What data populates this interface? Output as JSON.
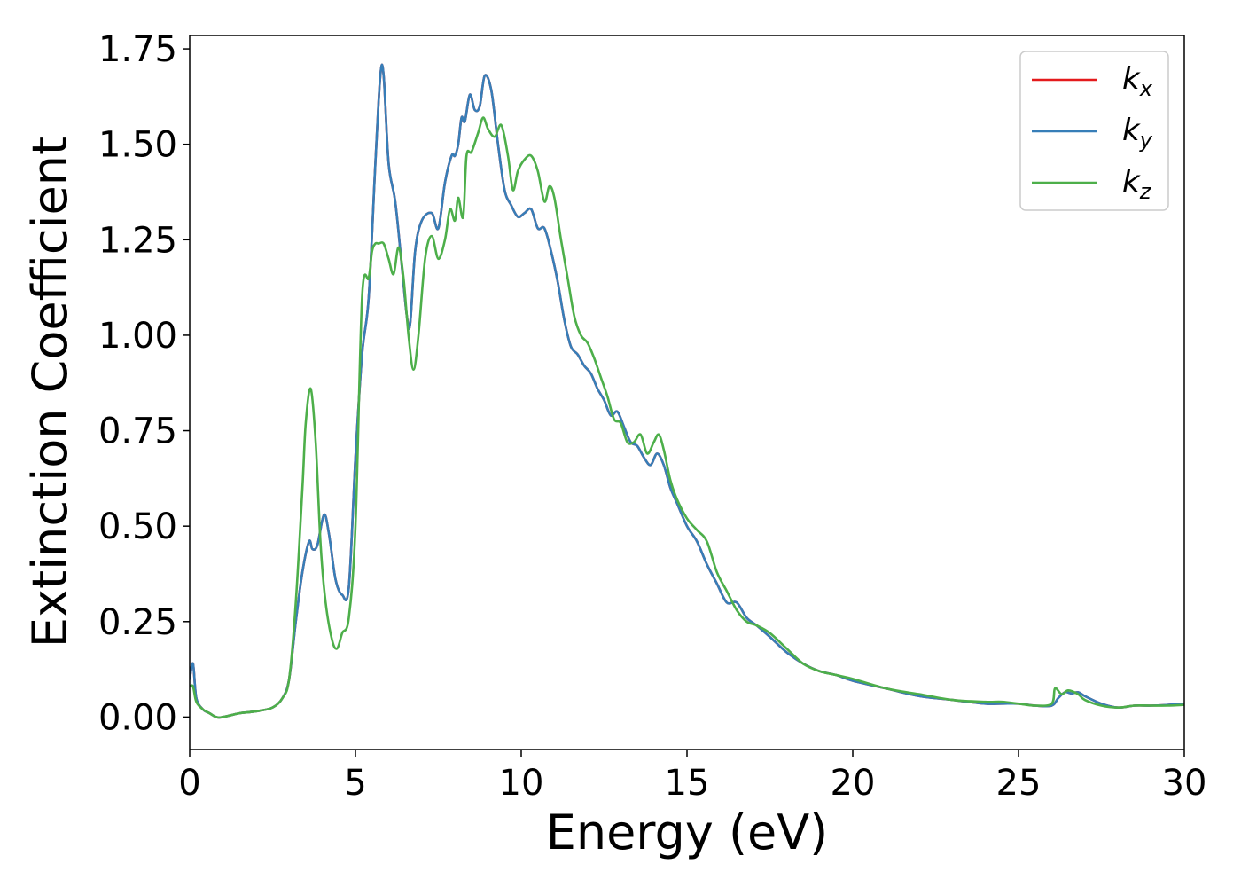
{
  "chart_data": {
    "type": "line",
    "xlabel": "Energy (eV)",
    "ylabel": "Extinction Coefficient",
    "xlim": [
      0,
      30
    ],
    "ylim": [
      -0.085,
      1.785
    ],
    "xticks": [
      0,
      5,
      10,
      15,
      20,
      25,
      30
    ],
    "xtick_labels": [
      "0",
      "5",
      "10",
      "15",
      "20",
      "25",
      "30"
    ],
    "yticks": [
      0.0,
      0.25,
      0.5,
      0.75,
      1.0,
      1.25,
      1.5,
      1.75
    ],
    "ytick_labels": [
      "0.00",
      "0.25",
      "0.50",
      "0.75",
      "1.00",
      "1.25",
      "1.50",
      "1.75"
    ],
    "grid": false,
    "legend_position": "top-right",
    "series": [
      {
        "name": "k_x",
        "label_main": "k",
        "label_sub": "x",
        "color": "#e41a1c",
        "x": [
          0,
          0.1,
          0.2,
          0.4,
          0.6,
          0.8,
          1.0,
          1.5,
          2.0,
          2.5,
          2.8,
          3.0,
          3.2,
          3.4,
          3.6,
          3.7,
          3.85,
          4.05,
          4.2,
          4.4,
          4.6,
          4.8,
          5.0,
          5.2,
          5.4,
          5.6,
          5.75,
          5.85,
          6.0,
          6.2,
          6.4,
          6.55,
          6.65,
          6.8,
          7.0,
          7.3,
          7.5,
          7.7,
          7.9,
          8.0,
          8.1,
          8.2,
          8.3,
          8.45,
          8.6,
          8.75,
          8.9,
          9.1,
          9.3,
          9.5,
          9.7,
          9.9,
          10.1,
          10.3,
          10.5,
          10.7,
          10.9,
          11.1,
          11.3,
          11.5,
          11.7,
          11.9,
          12.1,
          12.3,
          12.5,
          12.7,
          12.9,
          13.1,
          13.3,
          13.5,
          13.7,
          13.9,
          14.1,
          14.3,
          14.5,
          14.7,
          15.0,
          15.3,
          15.6,
          15.9,
          16.2,
          16.5,
          16.8,
          17.1,
          17.5,
          18.0,
          18.5,
          19.0,
          19.5,
          20.0,
          21.0,
          22.0,
          23.0,
          24.0,
          24.5,
          25.0,
          25.5,
          26.0,
          26.2,
          26.4,
          26.6,
          26.8,
          27.0,
          27.5,
          28.0,
          28.5,
          29.0,
          29.5,
          30.0
        ],
        "y": [
          0.1,
          0.14,
          0.05,
          0.02,
          0.01,
          0.0,
          0.0,
          0.01,
          0.015,
          0.025,
          0.05,
          0.1,
          0.25,
          0.38,
          0.46,
          0.44,
          0.45,
          0.53,
          0.48,
          0.36,
          0.32,
          0.34,
          0.68,
          0.95,
          1.1,
          1.45,
          1.68,
          1.68,
          1.45,
          1.35,
          1.18,
          1.05,
          1.03,
          1.22,
          1.3,
          1.32,
          1.28,
          1.4,
          1.47,
          1.47,
          1.5,
          1.57,
          1.56,
          1.63,
          1.59,
          1.6,
          1.68,
          1.64,
          1.5,
          1.38,
          1.34,
          1.31,
          1.32,
          1.33,
          1.28,
          1.28,
          1.22,
          1.14,
          1.04,
          0.97,
          0.95,
          0.92,
          0.9,
          0.86,
          0.83,
          0.79,
          0.8,
          0.76,
          0.72,
          0.71,
          0.68,
          0.66,
          0.69,
          0.66,
          0.6,
          0.56,
          0.5,
          0.46,
          0.4,
          0.35,
          0.3,
          0.3,
          0.26,
          0.24,
          0.21,
          0.17,
          0.14,
          0.12,
          0.11,
          0.095,
          0.075,
          0.055,
          0.045,
          0.035,
          0.035,
          0.035,
          0.03,
          0.03,
          0.05,
          0.065,
          0.062,
          0.065,
          0.055,
          0.035,
          0.025,
          0.03,
          0.03,
          0.032,
          0.035
        ]
      },
      {
        "name": "k_y",
        "label_main": "k",
        "label_sub": "y",
        "color": "#377eb8",
        "x": [
          0,
          0.1,
          0.2,
          0.4,
          0.6,
          0.8,
          1.0,
          1.5,
          2.0,
          2.5,
          2.8,
          3.0,
          3.2,
          3.4,
          3.6,
          3.7,
          3.85,
          4.05,
          4.2,
          4.4,
          4.6,
          4.8,
          5.0,
          5.2,
          5.4,
          5.6,
          5.75,
          5.85,
          6.0,
          6.2,
          6.4,
          6.55,
          6.65,
          6.8,
          7.0,
          7.3,
          7.5,
          7.7,
          7.9,
          8.0,
          8.1,
          8.2,
          8.3,
          8.45,
          8.6,
          8.75,
          8.9,
          9.1,
          9.3,
          9.5,
          9.7,
          9.9,
          10.1,
          10.3,
          10.5,
          10.7,
          10.9,
          11.1,
          11.3,
          11.5,
          11.7,
          11.9,
          12.1,
          12.3,
          12.5,
          12.7,
          12.9,
          13.1,
          13.3,
          13.5,
          13.7,
          13.9,
          14.1,
          14.3,
          14.5,
          14.7,
          15.0,
          15.3,
          15.6,
          15.9,
          16.2,
          16.5,
          16.8,
          17.1,
          17.5,
          18.0,
          18.5,
          19.0,
          19.5,
          20.0,
          21.0,
          22.0,
          23.0,
          24.0,
          24.5,
          25.0,
          25.5,
          26.0,
          26.2,
          26.4,
          26.6,
          26.8,
          27.0,
          27.5,
          28.0,
          28.5,
          29.0,
          29.5,
          30.0
        ],
        "y": [
          0.1,
          0.14,
          0.05,
          0.02,
          0.01,
          0.0,
          0.0,
          0.01,
          0.015,
          0.025,
          0.05,
          0.1,
          0.25,
          0.38,
          0.46,
          0.44,
          0.45,
          0.53,
          0.48,
          0.36,
          0.32,
          0.34,
          0.68,
          0.95,
          1.1,
          1.45,
          1.68,
          1.68,
          1.45,
          1.35,
          1.18,
          1.05,
          1.03,
          1.22,
          1.3,
          1.32,
          1.28,
          1.4,
          1.47,
          1.47,
          1.5,
          1.57,
          1.56,
          1.63,
          1.59,
          1.6,
          1.68,
          1.64,
          1.5,
          1.38,
          1.34,
          1.31,
          1.32,
          1.33,
          1.28,
          1.28,
          1.22,
          1.14,
          1.04,
          0.97,
          0.95,
          0.92,
          0.9,
          0.86,
          0.83,
          0.79,
          0.8,
          0.76,
          0.72,
          0.71,
          0.68,
          0.66,
          0.69,
          0.66,
          0.6,
          0.56,
          0.5,
          0.46,
          0.4,
          0.35,
          0.3,
          0.3,
          0.26,
          0.24,
          0.21,
          0.17,
          0.14,
          0.12,
          0.11,
          0.095,
          0.075,
          0.055,
          0.045,
          0.035,
          0.035,
          0.035,
          0.03,
          0.03,
          0.05,
          0.065,
          0.062,
          0.065,
          0.055,
          0.035,
          0.025,
          0.03,
          0.03,
          0.032,
          0.035
        ]
      },
      {
        "name": "k_z",
        "label_main": "k",
        "label_sub": "z",
        "color": "#4daf4a",
        "x": [
          0,
          0.1,
          0.2,
          0.4,
          0.6,
          0.8,
          1.0,
          1.5,
          2.0,
          2.5,
          2.8,
          3.0,
          3.2,
          3.4,
          3.5,
          3.65,
          3.8,
          3.95,
          4.1,
          4.3,
          4.45,
          4.6,
          4.8,
          5.0,
          5.2,
          5.4,
          5.5,
          5.6,
          5.7,
          5.85,
          6.0,
          6.15,
          6.3,
          6.45,
          6.6,
          6.75,
          6.9,
          7.1,
          7.3,
          7.5,
          7.7,
          7.85,
          8.0,
          8.1,
          8.25,
          8.35,
          8.5,
          8.7,
          8.85,
          9.0,
          9.2,
          9.4,
          9.6,
          9.75,
          9.9,
          10.1,
          10.3,
          10.5,
          10.7,
          10.85,
          11.0,
          11.2,
          11.4,
          11.6,
          11.8,
          12.0,
          12.2,
          12.4,
          12.6,
          12.8,
          13.0,
          13.2,
          13.4,
          13.6,
          13.8,
          14.0,
          14.15,
          14.3,
          14.5,
          14.7,
          15.0,
          15.3,
          15.6,
          15.9,
          16.2,
          16.5,
          16.8,
          17.1,
          17.5,
          18.0,
          18.5,
          19.0,
          19.5,
          20.0,
          21.0,
          22.0,
          23.0,
          24.0,
          24.5,
          25.0,
          25.5,
          26.0,
          26.1,
          26.3,
          26.5,
          26.8,
          27.0,
          27.5,
          28.0,
          28.5,
          29.0,
          29.5,
          30.0
        ],
        "y": [
          0.08,
          0.08,
          0.04,
          0.02,
          0.01,
          0.0,
          0.0,
          0.01,
          0.015,
          0.025,
          0.05,
          0.1,
          0.3,
          0.6,
          0.77,
          0.86,
          0.72,
          0.45,
          0.3,
          0.2,
          0.18,
          0.22,
          0.26,
          0.5,
          1.1,
          1.15,
          1.22,
          1.24,
          1.24,
          1.24,
          1.2,
          1.16,
          1.23,
          1.15,
          1.0,
          0.91,
          1.0,
          1.2,
          1.26,
          1.2,
          1.25,
          1.33,
          1.3,
          1.36,
          1.31,
          1.47,
          1.48,
          1.53,
          1.57,
          1.54,
          1.52,
          1.55,
          1.47,
          1.38,
          1.43,
          1.46,
          1.47,
          1.43,
          1.35,
          1.39,
          1.36,
          1.25,
          1.15,
          1.05,
          1.0,
          0.98,
          0.94,
          0.89,
          0.84,
          0.78,
          0.77,
          0.72,
          0.72,
          0.74,
          0.69,
          0.72,
          0.74,
          0.7,
          0.62,
          0.57,
          0.52,
          0.49,
          0.46,
          0.38,
          0.33,
          0.28,
          0.25,
          0.24,
          0.22,
          0.18,
          0.14,
          0.12,
          0.11,
          0.1,
          0.075,
          0.06,
          0.045,
          0.04,
          0.04,
          0.035,
          0.03,
          0.035,
          0.075,
          0.06,
          0.07,
          0.06,
          0.045,
          0.03,
          0.025,
          0.03,
          0.03,
          0.03,
          0.032
        ]
      }
    ]
  }
}
